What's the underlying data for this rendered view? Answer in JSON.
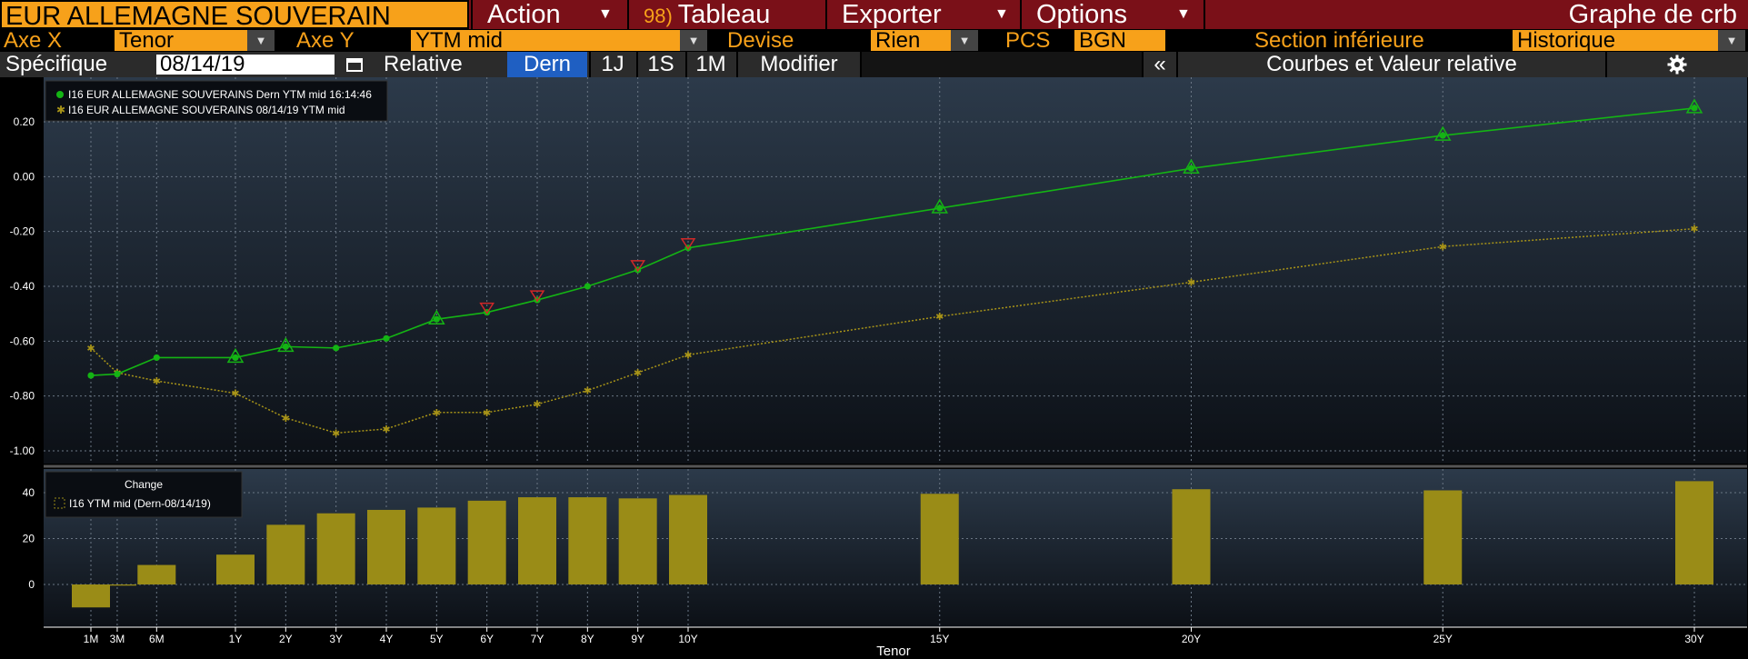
{
  "toolbar": {
    "security": "EUR ALLEMAGNE SOUVERAIN",
    "action": "Action",
    "tableau_num": "98)",
    "tableau": "Tableau",
    "exporter": "Exporter",
    "options": "Options",
    "title": "Graphe de crb"
  },
  "settings": {
    "axe_x_label": "Axe X",
    "axe_x_value": "Tenor",
    "axe_y_label": "Axe Y",
    "axe_y_value": "YTM mid",
    "devise_label": "Devise",
    "devise_value": "Rien",
    "pcs_label": "PCS",
    "pcs_value": "BGN",
    "section_label": "Section inférieure",
    "section_value": "Historique"
  },
  "controls": {
    "specifique_label": "Spécifique",
    "date_value": "08/14/19",
    "relative_label": "Relative",
    "dern": "Dern",
    "j1": "1J",
    "s1": "1S",
    "m1": "1M",
    "modifier": "Modifier",
    "collapse": "«",
    "panel_title": "Courbes et Valeur relative"
  },
  "icons": {
    "calendar": "calendar-icon",
    "settings": "gear-icon",
    "dropdown": "chevron-down-icon"
  },
  "colors": {
    "accent_orange": "#f7a11a",
    "header_red": "#7a1018",
    "current_curve": "#14b414",
    "historic_curve": "#a89418",
    "bars": "#9a8c17",
    "selected_blue": "#1f5fc2"
  },
  "chart_data": [
    {
      "type": "line",
      "x": [
        "1M",
        "3M",
        "6M",
        "1Y",
        "2Y",
        "3Y",
        "4Y",
        "5Y",
        "6Y",
        "7Y",
        "8Y",
        "9Y",
        "10Y",
        "15Y",
        "20Y",
        "25Y",
        "30Y"
      ],
      "x_years": [
        0.083,
        0.25,
        0.5,
        1,
        2,
        3,
        4,
        5,
        6,
        7,
        8,
        9,
        10,
        15,
        20,
        25,
        30
      ],
      "series": [
        {
          "name": "I16 EUR ALLEMAGNE SOUVERAINS Dern YTM mid 16:14:46",
          "values": [
            -0.725,
            -0.72,
            -0.66,
            -0.66,
            -0.62,
            -0.625,
            -0.59,
            -0.52,
            -0.495,
            -0.45,
            -0.4,
            -0.34,
            -0.26,
            -0.115,
            0.03,
            0.15,
            0.25
          ],
          "markers": [
            "dot",
            "dot",
            "dot",
            "up",
            "up",
            "dot",
            "dot",
            "up",
            "down",
            "down",
            "dot",
            "down",
            "down",
            "up",
            "up",
            "up",
            "up"
          ]
        },
        {
          "name": "I16 EUR ALLEMAGNE SOUVERAINS 08/14/19 YTM mid",
          "values": [
            -0.625,
            -0.715,
            -0.745,
            -0.79,
            -0.88,
            -0.935,
            -0.92,
            -0.86,
            -0.86,
            -0.83,
            -0.78,
            -0.715,
            -0.65,
            -0.51,
            -0.385,
            -0.255,
            -0.19
          ]
        }
      ],
      "yticks": [
        "0.20",
        "0.00",
        "-0.20",
        "-0.40",
        "-0.60",
        "-0.80",
        "-1.00"
      ],
      "ylim": [
        -1.05,
        0.3
      ],
      "grid": true,
      "legend": "top-left"
    },
    {
      "type": "bar",
      "title": "Change",
      "series": [
        {
          "name": "I16 YTM mid (Dern-08/14/19)",
          "values": [
            -10,
            -0.5,
            8.5,
            13,
            26,
            31,
            32.5,
            33.5,
            36.5,
            38,
            38,
            37.5,
            39,
            39.5,
            41.5,
            41,
            45
          ]
        }
      ],
      "yticks": [
        "40",
        "20",
        "0"
      ],
      "ylim": [
        -13,
        50
      ],
      "xlabel": "Tenor",
      "grid": true,
      "legend": "top-left"
    }
  ]
}
